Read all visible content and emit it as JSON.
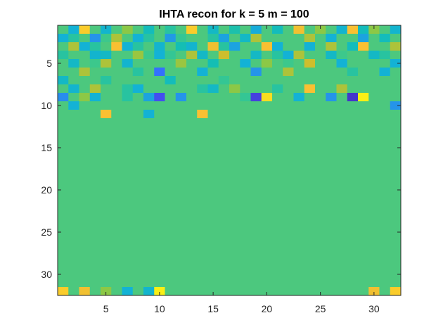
{
  "chart_data": {
    "type": "heatmap",
    "title": "IHTA recon for k = 5 m = 100",
    "xlabel": "",
    "ylabel": "",
    "xlim": [
      0.5,
      32.5
    ],
    "ylim": [
      0.5,
      32.5
    ],
    "y_direction": "reverse",
    "xticks": [
      5,
      10,
      15,
      20,
      25,
      30
    ],
    "yticks": [
      5,
      10,
      15,
      20,
      25,
      30
    ],
    "colormap": "parula",
    "clim": [
      0,
      1
    ],
    "grid": false,
    "legend": "none",
    "rows": 32,
    "cols": 32,
    "values": [
      [
        0.62,
        0.4,
        0.92,
        0.62,
        0.42,
        0.62,
        0.7,
        0.62,
        0.48,
        0.62,
        0.55,
        0.62,
        0.92,
        0.62,
        0.45,
        0.62,
        0.52,
        0.62,
        0.38,
        0.62,
        0.48,
        0.62,
        0.88,
        0.62,
        0.7,
        0.62,
        0.42,
        0.9,
        0.48,
        0.7,
        0.62,
        0.42
      ],
      [
        0.4,
        0.55,
        0.62,
        0.3,
        0.6,
        0.75,
        0.62,
        0.4,
        0.55,
        0.62,
        0.32,
        0.58,
        0.62,
        0.62,
        0.55,
        0.35,
        0.62,
        0.45,
        0.75,
        0.62,
        0.62,
        0.62,
        0.62,
        0.75,
        0.62,
        0.4,
        0.62,
        0.62,
        0.35,
        0.62,
        0.48,
        0.62
      ],
      [
        0.62,
        0.75,
        0.4,
        0.55,
        0.62,
        0.9,
        0.4,
        0.55,
        0.62,
        0.42,
        0.62,
        0.5,
        0.42,
        0.62,
        0.88,
        0.55,
        0.35,
        0.62,
        0.62,
        0.9,
        0.4,
        0.62,
        0.62,
        0.4,
        0.62,
        0.75,
        0.62,
        0.48,
        0.9,
        0.62,
        0.62,
        0.75
      ],
      [
        0.55,
        0.62,
        0.62,
        0.42,
        0.45,
        0.62,
        0.62,
        0.72,
        0.6,
        0.4,
        0.58,
        0.62,
        0.75,
        0.45,
        0.62,
        0.8,
        0.62,
        0.62,
        0.45,
        0.62,
        0.55,
        0.4,
        0.75,
        0.62,
        0.62,
        0.45,
        0.6,
        0.62,
        0.62,
        0.45,
        0.55,
        0.62
      ],
      [
        0.62,
        0.45,
        0.62,
        0.6,
        0.75,
        0.62,
        0.42,
        0.62,
        0.62,
        0.62,
        0.62,
        0.72,
        0.62,
        0.62,
        0.5,
        0.62,
        0.62,
        0.4,
        0.62,
        0.7,
        0.62,
        0.6,
        0.62,
        0.8,
        0.62,
        0.62,
        0.4,
        0.62,
        0.62,
        0.62,
        0.62,
        0.4
      ],
      [
        0.62,
        0.62,
        0.75,
        0.62,
        0.62,
        0.62,
        0.62,
        0.55,
        0.62,
        0.2,
        0.62,
        0.62,
        0.62,
        0.4,
        0.62,
        0.62,
        0.62,
        0.62,
        0.3,
        0.62,
        0.62,
        0.75,
        0.62,
        0.62,
        0.62,
        0.62,
        0.62,
        0.55,
        0.62,
        0.62,
        0.4,
        0.62
      ],
      [
        0.45,
        0.62,
        0.62,
        0.62,
        0.55,
        0.62,
        0.62,
        0.62,
        0.62,
        0.62,
        0.48,
        0.62,
        0.62,
        0.62,
        0.62,
        0.58,
        0.62,
        0.62,
        0.62,
        0.62,
        0.62,
        0.62,
        0.62,
        0.62,
        0.62,
        0.62,
        0.62,
        0.62,
        0.62,
        0.62,
        0.62,
        0.62
      ],
      [
        0.62,
        0.42,
        0.62,
        0.75,
        0.62,
        0.62,
        0.55,
        0.4,
        0.62,
        0.62,
        0.62,
        0.62,
        0.62,
        0.55,
        0.45,
        0.62,
        0.7,
        0.62,
        0.62,
        0.62,
        0.55,
        0.62,
        0.62,
        0.9,
        0.62,
        0.62,
        0.75,
        0.62,
        0.62,
        0.62,
        0.62,
        0.62
      ],
      [
        0.28,
        0.62,
        0.7,
        0.4,
        0.62,
        0.62,
        0.55,
        0.62,
        0.35,
        0.12,
        0.62,
        0.3,
        0.62,
        0.62,
        0.62,
        0.62,
        0.62,
        0.58,
        0.08,
        0.95,
        0.62,
        0.62,
        0.4,
        0.62,
        0.62,
        0.3,
        0.62,
        0.05,
        0.98,
        0.62,
        0.62,
        0.62
      ],
      [
        0.62,
        0.4,
        0.62,
        0.62,
        0.62,
        0.62,
        0.62,
        0.62,
        0.62,
        0.62,
        0.62,
        0.62,
        0.62,
        0.62,
        0.62,
        0.62,
        0.62,
        0.62,
        0.62,
        0.62,
        0.62,
        0.62,
        0.62,
        0.62,
        0.62,
        0.62,
        0.62,
        0.62,
        0.62,
        0.62,
        0.62,
        0.3
      ],
      [
        0.62,
        0.62,
        0.62,
        0.62,
        0.9,
        0.62,
        0.62,
        0.62,
        0.4,
        0.62,
        0.62,
        0.62,
        0.62,
        0.9,
        0.62,
        0.62,
        0.62,
        0.62,
        0.62,
        0.62,
        0.62,
        0.62,
        0.62,
        0.62,
        0.62,
        0.62,
        0.62,
        0.62,
        0.62,
        0.62,
        0.62,
        0.62
      ],
      [
        0.62,
        0.62,
        0.62,
        0.62,
        0.62,
        0.62,
        0.62,
        0.62,
        0.62,
        0.62,
        0.62,
        0.62,
        0.62,
        0.62,
        0.62,
        0.62,
        0.62,
        0.62,
        0.62,
        0.62,
        0.62,
        0.62,
        0.62,
        0.62,
        0.62,
        0.62,
        0.62,
        0.62,
        0.62,
        0.62,
        0.62,
        0.62
      ],
      [
        0.62,
        0.62,
        0.62,
        0.62,
        0.62,
        0.62,
        0.62,
        0.62,
        0.62,
        0.62,
        0.62,
        0.62,
        0.62,
        0.62,
        0.62,
        0.62,
        0.62,
        0.62,
        0.62,
        0.62,
        0.62,
        0.62,
        0.62,
        0.62,
        0.62,
        0.62,
        0.62,
        0.62,
        0.62,
        0.62,
        0.62,
        0.62
      ],
      [
        0.62,
        0.62,
        0.62,
        0.62,
        0.62,
        0.62,
        0.62,
        0.62,
        0.62,
        0.62,
        0.62,
        0.62,
        0.62,
        0.62,
        0.62,
        0.62,
        0.62,
        0.62,
        0.62,
        0.62,
        0.62,
        0.62,
        0.62,
        0.62,
        0.62,
        0.62,
        0.62,
        0.62,
        0.62,
        0.62,
        0.62,
        0.62
      ],
      [
        0.62,
        0.62,
        0.62,
        0.62,
        0.62,
        0.62,
        0.62,
        0.62,
        0.62,
        0.62,
        0.62,
        0.62,
        0.62,
        0.62,
        0.62,
        0.62,
        0.62,
        0.62,
        0.62,
        0.62,
        0.62,
        0.62,
        0.62,
        0.62,
        0.62,
        0.62,
        0.62,
        0.62,
        0.62,
        0.62,
        0.62,
        0.62
      ],
      [
        0.62,
        0.62,
        0.62,
        0.62,
        0.62,
        0.62,
        0.62,
        0.62,
        0.62,
        0.62,
        0.62,
        0.62,
        0.62,
        0.62,
        0.62,
        0.62,
        0.62,
        0.62,
        0.62,
        0.62,
        0.62,
        0.62,
        0.62,
        0.62,
        0.62,
        0.62,
        0.62,
        0.62,
        0.62,
        0.62,
        0.62,
        0.62
      ],
      [
        0.62,
        0.62,
        0.62,
        0.62,
        0.62,
        0.62,
        0.62,
        0.62,
        0.62,
        0.62,
        0.62,
        0.62,
        0.62,
        0.62,
        0.62,
        0.62,
        0.62,
        0.62,
        0.62,
        0.62,
        0.62,
        0.62,
        0.62,
        0.62,
        0.62,
        0.62,
        0.62,
        0.62,
        0.62,
        0.62,
        0.62,
        0.62
      ],
      [
        0.62,
        0.62,
        0.62,
        0.62,
        0.62,
        0.62,
        0.62,
        0.62,
        0.62,
        0.62,
        0.62,
        0.62,
        0.62,
        0.62,
        0.62,
        0.62,
        0.62,
        0.62,
        0.62,
        0.62,
        0.62,
        0.62,
        0.62,
        0.62,
        0.62,
        0.62,
        0.62,
        0.62,
        0.62,
        0.62,
        0.62,
        0.62
      ],
      [
        0.62,
        0.62,
        0.62,
        0.62,
        0.62,
        0.62,
        0.62,
        0.62,
        0.62,
        0.62,
        0.62,
        0.62,
        0.62,
        0.62,
        0.62,
        0.62,
        0.62,
        0.62,
        0.62,
        0.62,
        0.62,
        0.62,
        0.62,
        0.62,
        0.62,
        0.62,
        0.62,
        0.62,
        0.62,
        0.62,
        0.62,
        0.62
      ],
      [
        0.62,
        0.62,
        0.62,
        0.62,
        0.62,
        0.62,
        0.62,
        0.62,
        0.62,
        0.62,
        0.62,
        0.62,
        0.62,
        0.62,
        0.62,
        0.62,
        0.62,
        0.62,
        0.62,
        0.62,
        0.62,
        0.62,
        0.62,
        0.62,
        0.62,
        0.62,
        0.62,
        0.62,
        0.62,
        0.62,
        0.62,
        0.62
      ],
      [
        0.62,
        0.62,
        0.62,
        0.62,
        0.62,
        0.62,
        0.62,
        0.62,
        0.62,
        0.62,
        0.62,
        0.62,
        0.62,
        0.62,
        0.62,
        0.62,
        0.62,
        0.62,
        0.62,
        0.62,
        0.62,
        0.62,
        0.62,
        0.62,
        0.62,
        0.62,
        0.62,
        0.62,
        0.62,
        0.62,
        0.62,
        0.62
      ],
      [
        0.62,
        0.62,
        0.62,
        0.62,
        0.62,
        0.62,
        0.62,
        0.62,
        0.62,
        0.62,
        0.62,
        0.62,
        0.62,
        0.62,
        0.62,
        0.62,
        0.62,
        0.62,
        0.62,
        0.62,
        0.62,
        0.62,
        0.62,
        0.62,
        0.62,
        0.62,
        0.62,
        0.62,
        0.62,
        0.62,
        0.62,
        0.62
      ],
      [
        0.62,
        0.62,
        0.62,
        0.62,
        0.62,
        0.62,
        0.62,
        0.62,
        0.62,
        0.62,
        0.62,
        0.62,
        0.62,
        0.62,
        0.62,
        0.62,
        0.62,
        0.62,
        0.62,
        0.62,
        0.62,
        0.62,
        0.62,
        0.62,
        0.62,
        0.62,
        0.62,
        0.62,
        0.62,
        0.62,
        0.62,
        0.62
      ],
      [
        0.62,
        0.62,
        0.62,
        0.62,
        0.62,
        0.62,
        0.62,
        0.62,
        0.62,
        0.62,
        0.62,
        0.62,
        0.62,
        0.62,
        0.62,
        0.62,
        0.62,
        0.62,
        0.62,
        0.62,
        0.62,
        0.62,
        0.62,
        0.62,
        0.62,
        0.62,
        0.62,
        0.62,
        0.62,
        0.62,
        0.62,
        0.62
      ],
      [
        0.62,
        0.62,
        0.62,
        0.62,
        0.62,
        0.62,
        0.62,
        0.62,
        0.62,
        0.62,
        0.62,
        0.62,
        0.62,
        0.62,
        0.62,
        0.62,
        0.62,
        0.62,
        0.62,
        0.62,
        0.62,
        0.62,
        0.62,
        0.62,
        0.62,
        0.62,
        0.62,
        0.62,
        0.62,
        0.62,
        0.62,
        0.62
      ],
      [
        0.62,
        0.62,
        0.62,
        0.62,
        0.62,
        0.62,
        0.62,
        0.62,
        0.62,
        0.62,
        0.62,
        0.62,
        0.62,
        0.62,
        0.62,
        0.62,
        0.62,
        0.62,
        0.62,
        0.62,
        0.62,
        0.62,
        0.62,
        0.62,
        0.62,
        0.62,
        0.62,
        0.62,
        0.62,
        0.62,
        0.62,
        0.62
      ],
      [
        0.62,
        0.62,
        0.62,
        0.62,
        0.62,
        0.62,
        0.62,
        0.62,
        0.62,
        0.62,
        0.62,
        0.62,
        0.62,
        0.62,
        0.62,
        0.62,
        0.62,
        0.62,
        0.62,
        0.62,
        0.62,
        0.62,
        0.62,
        0.62,
        0.62,
        0.62,
        0.62,
        0.62,
        0.62,
        0.62,
        0.62,
        0.62
      ],
      [
        0.62,
        0.62,
        0.62,
        0.62,
        0.62,
        0.62,
        0.62,
        0.62,
        0.62,
        0.62,
        0.62,
        0.62,
        0.62,
        0.62,
        0.62,
        0.62,
        0.62,
        0.62,
        0.62,
        0.62,
        0.62,
        0.62,
        0.62,
        0.62,
        0.62,
        0.62,
        0.62,
        0.62,
        0.62,
        0.62,
        0.62,
        0.62
      ],
      [
        0.62,
        0.62,
        0.62,
        0.62,
        0.62,
        0.62,
        0.62,
        0.62,
        0.62,
        0.62,
        0.62,
        0.62,
        0.62,
        0.62,
        0.62,
        0.62,
        0.62,
        0.62,
        0.62,
        0.62,
        0.62,
        0.62,
        0.62,
        0.62,
        0.62,
        0.62,
        0.62,
        0.62,
        0.62,
        0.62,
        0.62,
        0.62
      ],
      [
        0.62,
        0.62,
        0.62,
        0.62,
        0.62,
        0.62,
        0.62,
        0.62,
        0.62,
        0.62,
        0.62,
        0.62,
        0.62,
        0.62,
        0.62,
        0.62,
        0.62,
        0.62,
        0.62,
        0.62,
        0.62,
        0.62,
        0.62,
        0.62,
        0.62,
        0.62,
        0.62,
        0.62,
        0.62,
        0.62,
        0.62,
        0.62
      ],
      [
        0.62,
        0.62,
        0.62,
        0.62,
        0.62,
        0.62,
        0.62,
        0.62,
        0.62,
        0.62,
        0.62,
        0.62,
        0.62,
        0.62,
        0.62,
        0.62,
        0.62,
        0.62,
        0.62,
        0.62,
        0.62,
        0.62,
        0.62,
        0.62,
        0.62,
        0.62,
        0.62,
        0.62,
        0.62,
        0.62,
        0.62,
        0.62
      ],
      [
        0.92,
        0.62,
        0.88,
        0.62,
        0.7,
        0.62,
        0.4,
        0.62,
        0.42,
        0.98,
        0.62,
        0.62,
        0.62,
        0.62,
        0.62,
        0.62,
        0.62,
        0.62,
        0.62,
        0.62,
        0.62,
        0.62,
        0.62,
        0.62,
        0.62,
        0.62,
        0.62,
        0.62,
        0.62,
        0.88,
        0.62,
        0.92
      ]
    ]
  }
}
